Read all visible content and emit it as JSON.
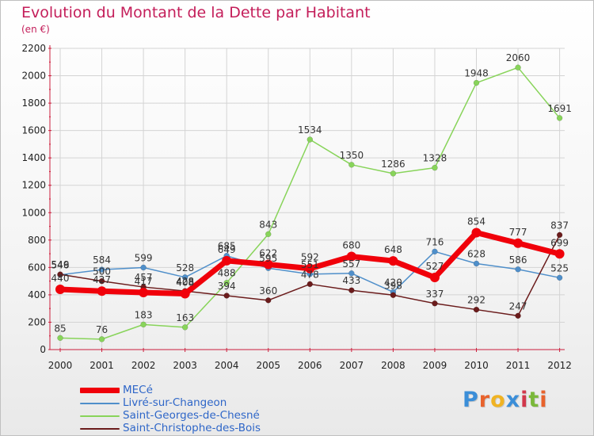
{
  "title": "Evolution du Montant de la Dette par Habitant",
  "unit_label": "(en €)",
  "logo_text": "Proxiti",
  "logo_colors": [
    "#3b8ed8",
    "#e8622c",
    "#f0b323",
    "#3b8ed8",
    "#d2384c",
    "#7ab83a",
    "#e8622c"
  ],
  "colors": {
    "title": "#c41e5a",
    "axis": "#cc1e3c",
    "grid": "#d4d4d4",
    "tick_text": "#222222",
    "label_text": "#333333",
    "legend_text": "#2e66c8"
  },
  "chart_data": {
    "type": "line",
    "title": "Evolution du Montant de la Dette par Habitant",
    "ylabel": "(en €)",
    "xlabel": "",
    "x": [
      "2000",
      "2001",
      "2002",
      "2003",
      "2004",
      "2005",
      "2006",
      "2007",
      "2008",
      "2009",
      "2010",
      "2011",
      "2012"
    ],
    "ylim": [
      0,
      2200
    ],
    "yticks": [
      "0",
      "200",
      "400",
      "600",
      "800",
      "1000",
      "1200",
      "1400",
      "1600",
      "1800",
      "2000",
      "2200"
    ],
    "grid": true,
    "legend_position": "bottom-left",
    "series": [
      {
        "name": "MECé",
        "color": "#f0000a",
        "values": [
          440,
          427,
          417,
          408,
          649,
          622,
          592,
          680,
          648,
          527,
          854,
          777,
          699
        ]
      },
      {
        "name": "Livré-sur-Changeon",
        "color": "#4f8fca",
        "values": [
          546,
          584,
          599,
          528,
          685,
          595,
          551,
          557,
          420,
          716,
          628,
          586,
          525
        ]
      },
      {
        "name": "Saint-Georges-de-Chesné",
        "color": "#88d45a",
        "values": [
          85,
          76,
          183,
          163,
          488,
          843,
          1534,
          1350,
          1286,
          1328,
          1948,
          2060,
          1691
        ]
      },
      {
        "name": "Saint-Christophe-des-Bois",
        "color": "#6b1c1c",
        "values": [
          549,
          500,
          457,
          428,
          394,
          360,
          478,
          433,
          398,
          337,
          292,
          247,
          837
        ]
      }
    ]
  }
}
